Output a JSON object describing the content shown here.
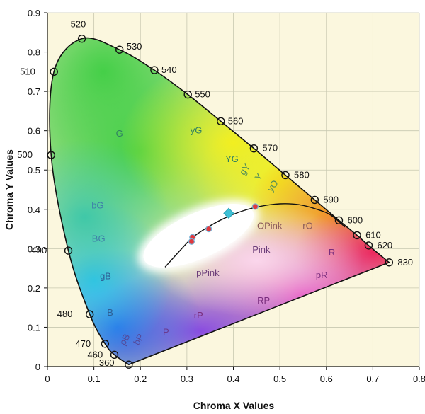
{
  "chart_data": {
    "type": "scatter",
    "title": "",
    "xlabel": "Chroma X Values",
    "ylabel": "Chroma Y Values",
    "xlim": [
      0,
      0.8
    ],
    "ylim": [
      0,
      0.9
    ],
    "x_ticks": [
      "0",
      "0.1",
      "0.2",
      "0.3",
      "0.4",
      "0.5",
      "0.6",
      "0.7",
      "0.8"
    ],
    "y_ticks": [
      "0",
      "0.1",
      "0.2",
      "0.3",
      "0.4",
      "0.5",
      "0.6",
      "0.7",
      "0.8",
      "0.9"
    ],
    "grid": true,
    "spectral_locus": [
      {
        "label": "360",
        "x": 0.175,
        "y": 0.005
      },
      {
        "label": "460",
        "x": 0.144,
        "y": 0.03
      },
      {
        "label": "470",
        "x": 0.124,
        "y": 0.058
      },
      {
        "label": "480",
        "x": 0.091,
        "y": 0.133
      },
      {
        "label": "490",
        "x": 0.045,
        "y": 0.295
      },
      {
        "label": "500",
        "x": 0.008,
        "y": 0.538
      },
      {
        "label": "510",
        "x": 0.014,
        "y": 0.75
      },
      {
        "label": "520",
        "x": 0.074,
        "y": 0.834
      },
      {
        "label": "530",
        "x": 0.155,
        "y": 0.806
      },
      {
        "label": "540",
        "x": 0.23,
        "y": 0.754
      },
      {
        "label": "550",
        "x": 0.302,
        "y": 0.692
      },
      {
        "label": "560",
        "x": 0.373,
        "y": 0.624
      },
      {
        "label": "570",
        "x": 0.444,
        "y": 0.555
      },
      {
        "label": "580",
        "x": 0.512,
        "y": 0.487
      },
      {
        "label": "590",
        "x": 0.575,
        "y": 0.424
      },
      {
        "label": "600",
        "x": 0.627,
        "y": 0.372
      },
      {
        "label": "610",
        "x": 0.666,
        "y": 0.334
      },
      {
        "label": "620",
        "x": 0.691,
        "y": 0.308
      },
      {
        "label": "830",
        "x": 0.735,
        "y": 0.265
      }
    ],
    "planckian_locus": [
      {
        "x": 0.253,
        "y": 0.253
      },
      {
        "x": 0.285,
        "y": 0.295
      },
      {
        "x": 0.313,
        "y": 0.329
      },
      {
        "x": 0.347,
        "y": 0.356
      },
      {
        "x": 0.38,
        "y": 0.377
      },
      {
        "x": 0.42,
        "y": 0.396
      },
      {
        "x": 0.46,
        "y": 0.408
      },
      {
        "x": 0.5,
        "y": 0.414
      },
      {
        "x": 0.54,
        "y": 0.412
      },
      {
        "x": 0.58,
        "y": 0.4
      },
      {
        "x": 0.61,
        "y": 0.385
      },
      {
        "x": 0.64,
        "y": 0.355
      }
    ],
    "points": [
      {
        "x": 0.312,
        "y": 0.329,
        "color": "#e0393e"
      },
      {
        "x": 0.31,
        "y": 0.318,
        "color": "#e0393e"
      },
      {
        "x": 0.347,
        "y": 0.35,
        "color": "#e0393e"
      },
      {
        "x": 0.447,
        "y": 0.407,
        "color": "#e0393e"
      },
      {
        "x": 0.39,
        "y": 0.39,
        "color": "#3fc1d6",
        "marker": "diamond"
      }
    ],
    "regions": [
      {
        "label": "G",
        "x": 0.155,
        "y": 0.585,
        "color": "#2f7f62"
      },
      {
        "label": "yG",
        "x": 0.32,
        "y": 0.593,
        "color": "#2f7f62"
      },
      {
        "label": "YG",
        "x": 0.397,
        "y": 0.52,
        "color": "#2f7f62"
      },
      {
        "label": "gY",
        "x": 0.43,
        "y": 0.497,
        "color": "#4f8b5a",
        "rotate": -55
      },
      {
        "label": "Y",
        "x": 0.46,
        "y": 0.478,
        "color": "#4f8b5a",
        "rotate": -55
      },
      {
        "label": "yO",
        "x": 0.49,
        "y": 0.455,
        "color": "#4f8b5a",
        "rotate": -55
      },
      {
        "label": "bG",
        "x": 0.108,
        "y": 0.402,
        "color": "#3f7fa8"
      },
      {
        "label": "BG",
        "x": 0.11,
        "y": 0.318,
        "color": "#3f7fa8"
      },
      {
        "label": "gB",
        "x": 0.125,
        "y": 0.222,
        "color": "#2d5f95"
      },
      {
        "label": "B",
        "x": 0.135,
        "y": 0.13,
        "color": "#2d5f95"
      },
      {
        "label": "pB",
        "x": 0.172,
        "y": 0.065,
        "color": "#544a9a",
        "rotate": -60
      },
      {
        "label": "bP",
        "x": 0.202,
        "y": 0.065,
        "color": "#544a9a",
        "rotate": -60
      },
      {
        "label": "P",
        "x": 0.255,
        "y": 0.08,
        "color": "#6a3a8e"
      },
      {
        "label": "rP",
        "x": 0.325,
        "y": 0.122,
        "color": "#7a2e7e"
      },
      {
        "label": "RP",
        "x": 0.465,
        "y": 0.16,
        "color": "#7a2e7e"
      },
      {
        "label": "pPink",
        "x": 0.345,
        "y": 0.23,
        "color": "#6c3e7a"
      },
      {
        "label": "Pink",
        "x": 0.46,
        "y": 0.29,
        "color": "#6c3e7a"
      },
      {
        "label": "pR",
        "x": 0.59,
        "y": 0.225,
        "color": "#7a2e7e"
      },
      {
        "label": "R",
        "x": 0.612,
        "y": 0.283,
        "color": "#7a2e7e"
      },
      {
        "label": "OPink",
        "x": 0.478,
        "y": 0.35,
        "color": "#8a5a5a"
      },
      {
        "label": "rO",
        "x": 0.56,
        "y": 0.35,
        "color": "#8a5a5a"
      }
    ]
  },
  "colors": {
    "background": "#fbf7de",
    "grid": "#c8c8b0",
    "locus": "#111111",
    "white_point_region": "#ffffff"
  }
}
